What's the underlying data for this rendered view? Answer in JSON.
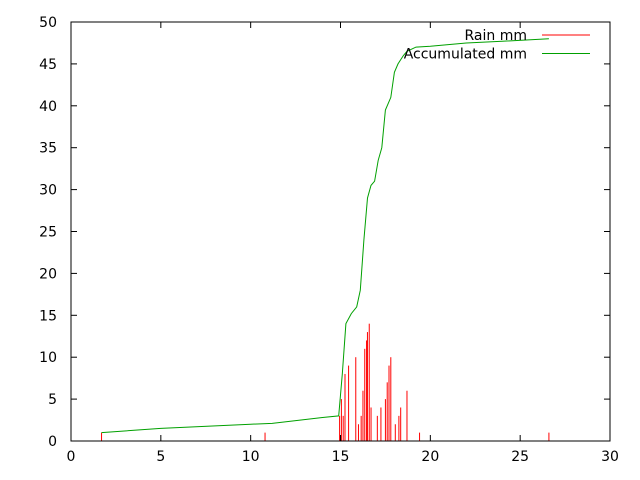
{
  "chart_data": {
    "type": "line",
    "title": "",
    "xlabel": "",
    "ylabel": "",
    "xlim": [
      0,
      30
    ],
    "ylim": [
      0,
      50
    ],
    "x_ticks": [
      "0",
      "5",
      "10",
      "15",
      "20",
      "25",
      "30"
    ],
    "y_ticks": [
      "0",
      "5",
      "10",
      "15",
      "20",
      "25",
      "30",
      "35",
      "40",
      "45",
      "50"
    ],
    "grid": false,
    "legend_position": "top-right",
    "series": [
      {
        "name": "Rain mm",
        "style": "impulses",
        "color": "#ff0000",
        "x": [
          1.7,
          10.8,
          14.95,
          15.05,
          15.15,
          15.25,
          15.45,
          15.85,
          16.0,
          16.15,
          16.25,
          16.35,
          16.45,
          16.5,
          16.6,
          16.7,
          17.05,
          17.25,
          17.5,
          17.6,
          17.7,
          17.8,
          18.05,
          18.25,
          18.35,
          18.7,
          19.4,
          26.6
        ],
        "y": [
          1,
          1,
          3,
          5,
          3,
          8,
          9,
          10,
          2,
          3,
          6,
          11,
          12,
          13,
          14,
          4,
          3,
          4,
          5,
          7,
          9,
          10,
          2,
          3,
          4,
          6,
          1,
          1
        ]
      },
      {
        "name": "Accumulated mm",
        "style": "line",
        "color": "#00a000",
        "x": [
          1.7,
          5,
          10,
          11.2,
          14.0,
          14.9,
          15.1,
          15.3,
          15.6,
          15.9,
          16.1,
          16.3,
          16.5,
          16.7,
          16.9,
          17.1,
          17.3,
          17.5,
          17.8,
          18.0,
          18.2,
          18.5,
          18.7,
          19.2,
          20.0,
          21.0,
          22.0,
          24.0,
          26.6
        ],
        "y": [
          1.0,
          1.5,
          2.0,
          2.1,
          2.8,
          3.0,
          8.0,
          14.0,
          15.2,
          16.0,
          18.0,
          24.0,
          29.0,
          30.5,
          31.0,
          33.5,
          35.0,
          39.5,
          41.0,
          44.0,
          45.0,
          46.0,
          46.5,
          47.0,
          47.1,
          47.3,
          47.5,
          47.7,
          48.0
        ]
      }
    ]
  }
}
